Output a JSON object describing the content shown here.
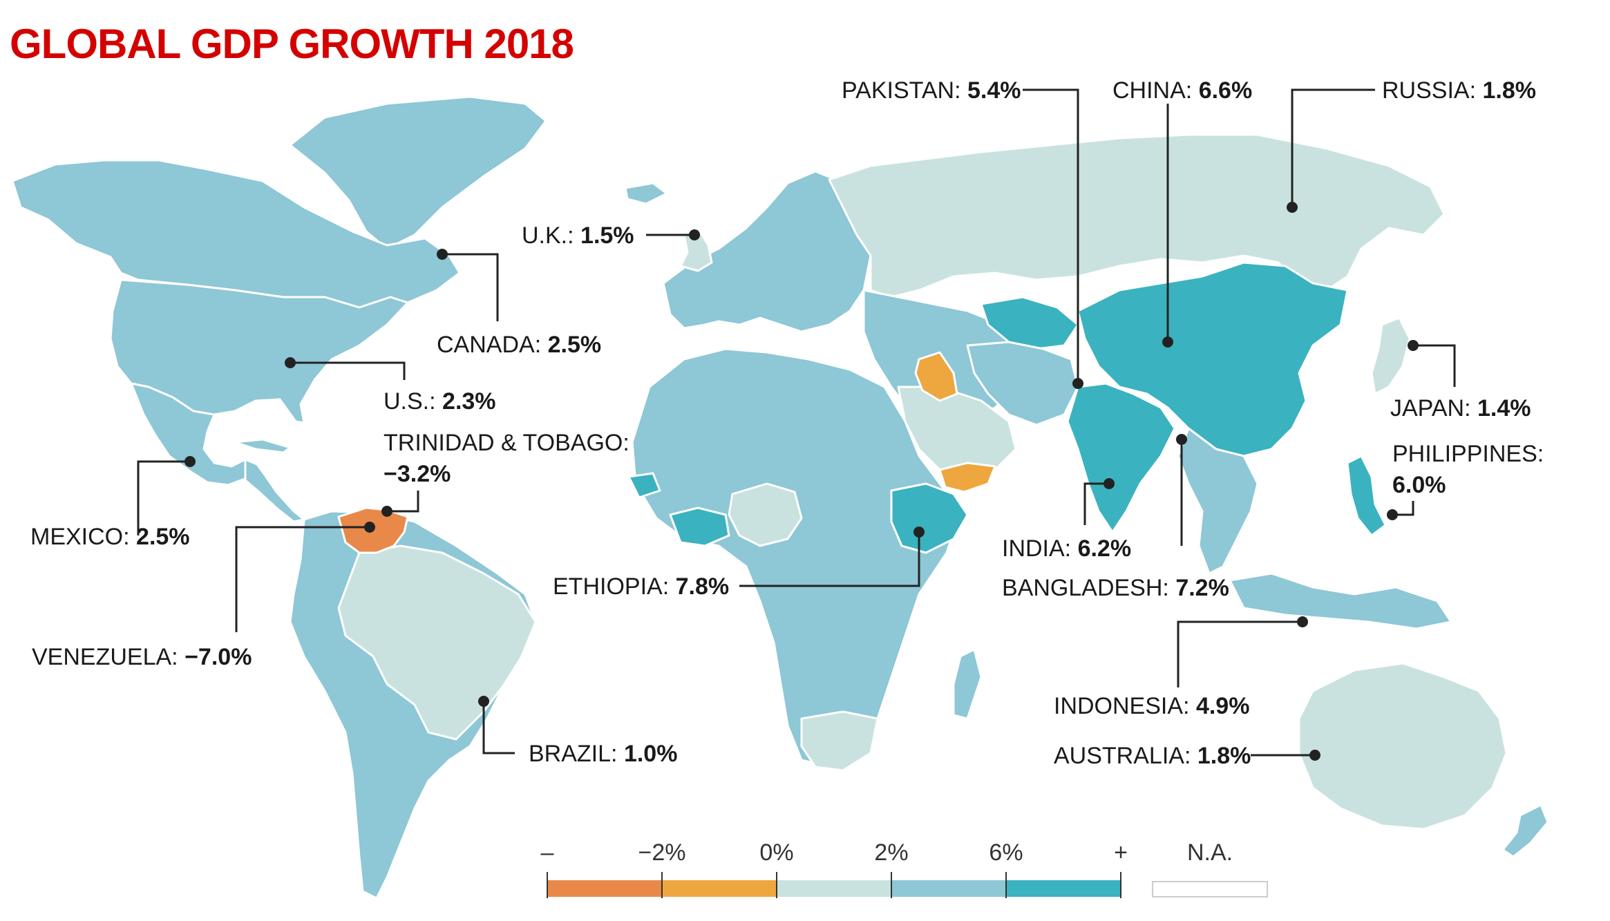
{
  "title": "GLOBAL GDP GROWTH 2018",
  "colors": {
    "title": "#d40000",
    "below_minus2": "#e8894a",
    "minus2_to_0": "#eea63f",
    "0_to_2": "#c9e2e0",
    "2_to_6": "#8ec7d6",
    "above_6": "#3bb2bf",
    "na": "#ffffff"
  },
  "countries": [
    {
      "name": "PAKISTAN:",
      "value": "5.4%"
    },
    {
      "name": "CHINA:",
      "value": "6.6%"
    },
    {
      "name": "RUSSIA:",
      "value": "1.8%"
    },
    {
      "name": "U.K.:",
      "value": "1.5%"
    },
    {
      "name": "CANADA:",
      "value": "2.5%"
    },
    {
      "name": "U.S.:",
      "value": "2.3%"
    },
    {
      "name": "TRINIDAD & TOBAGO:",
      "value": "−3.2%"
    },
    {
      "name": "MEXICO:",
      "value": "2.5%"
    },
    {
      "name": "VENEZUELA:",
      "value": "−7.0%"
    },
    {
      "name": "BRAZIL:",
      "value": "1.0%"
    },
    {
      "name": "ETHIOPIA:",
      "value": "7.8%"
    },
    {
      "name": "INDIA:",
      "value": "6.2%"
    },
    {
      "name": "BANGLADESH:",
      "value": "7.2%"
    },
    {
      "name": "JAPAN:",
      "value": "1.4%"
    },
    {
      "name": "PHILIPPINES:",
      "value": "6.0%"
    },
    {
      "name": "INDONESIA:",
      "value": "4.9%"
    },
    {
      "name": "AUSTRALIA:",
      "value": "1.8%"
    }
  ],
  "legend": {
    "ticks": [
      "–",
      "−2%",
      "0%",
      "2%",
      "6%",
      "+"
    ],
    "na_label": "N.A."
  }
}
